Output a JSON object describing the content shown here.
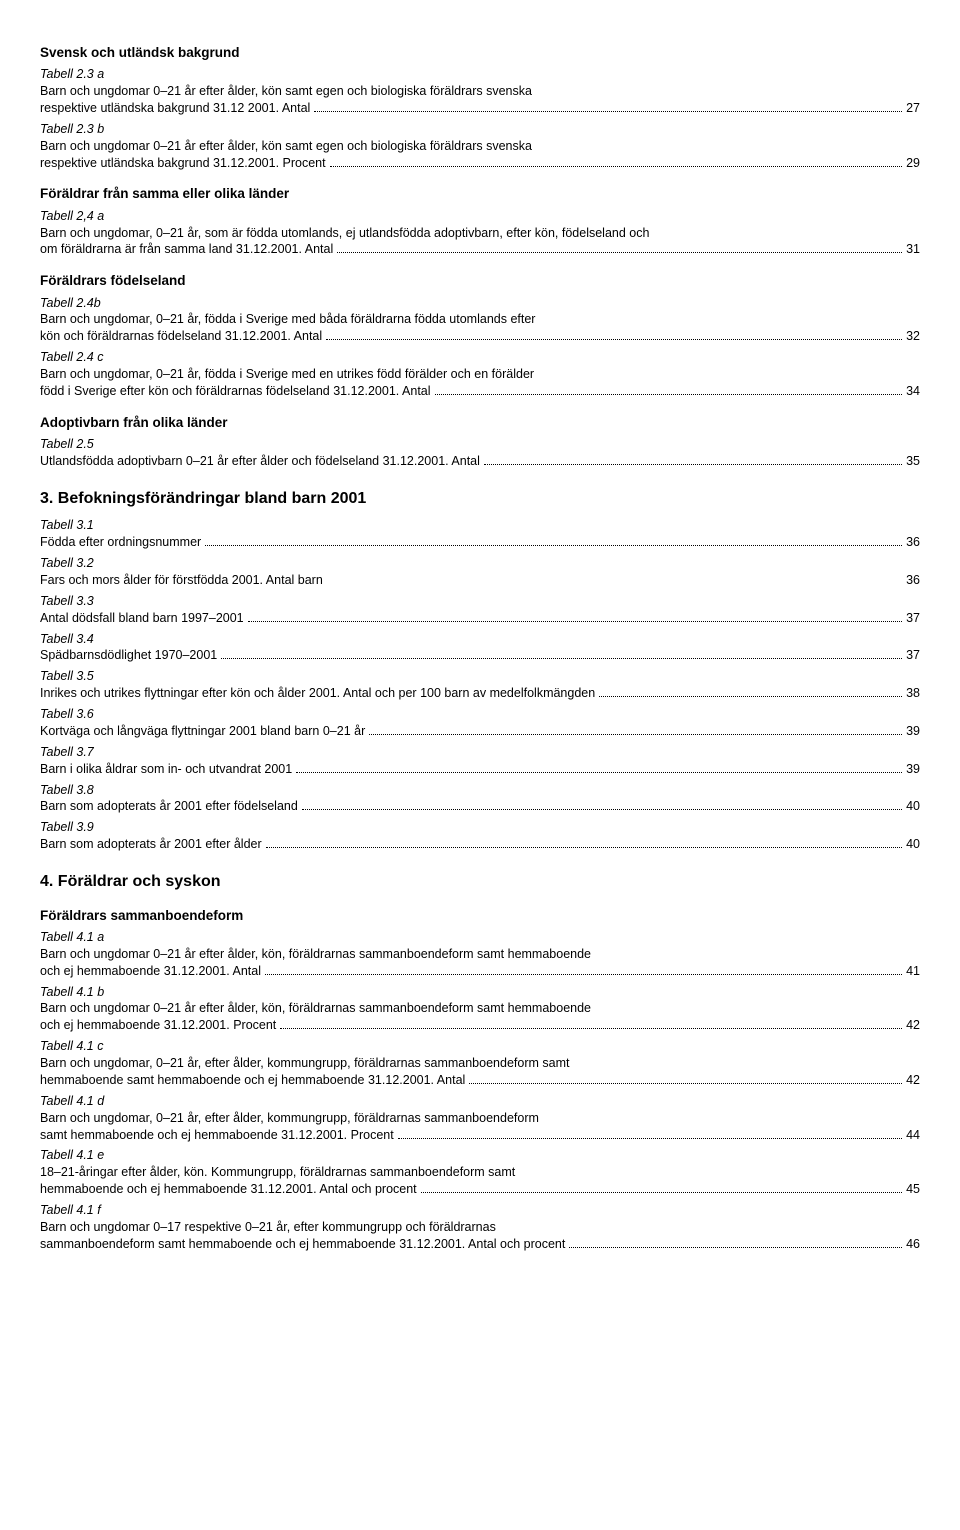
{
  "sections": [
    {
      "subtitle": "Svensk och utländsk bakgrund",
      "entries": [
        {
          "label": "Tabell 2.3 a",
          "lines": [
            "Barn och ungdomar 0–21 år efter ålder, kön samt egen och biologiska föräldrars svenska"
          ],
          "lastText": "respektive utländska bakgrund 31.12 2001. Antal",
          "page": "27"
        },
        {
          "label": "Tabell 2.3 b",
          "lines": [
            "Barn och ungdomar 0–21 år efter ålder, kön samt egen och biologiska föräldrars svenska"
          ],
          "lastText": "respektive utländska bakgrund 31.12.2001. Procent",
          "page": "29"
        }
      ]
    },
    {
      "subtitle": "Föräldrar från samma eller olika länder",
      "entries": [
        {
          "label": "Tabell 2,4 a",
          "lines": [
            "Barn och ungdomar, 0–21 år, som är födda utomlands, ej utlandsfödda adoptivbarn, efter kön, födelseland och"
          ],
          "lastText": "om föräldrarna är från samma land 31.12.2001. Antal",
          "page": "31"
        }
      ]
    },
    {
      "subtitle": "Föräldrars födelseland",
      "entries": [
        {
          "label": "Tabell 2.4b",
          "lines": [
            "Barn och ungdomar, 0–21 år, födda i Sverige med båda föräldrarna födda utomlands efter"
          ],
          "lastText": "kön och föräldrarnas födelseland 31.12.2001. Antal",
          "page": "32"
        },
        {
          "label": "Tabell 2.4 c",
          "lines": [
            "Barn och ungdomar, 0–21 år, födda i Sverige med en utrikes född förälder och en förälder"
          ],
          "lastText": "född i Sverige efter kön och föräldrarnas födelseland 31.12.2001. Antal",
          "page": "34"
        }
      ]
    },
    {
      "subtitle": "Adoptivbarn från olika länder",
      "entries": [
        {
          "label": "Tabell 2.5",
          "lines": [],
          "lastText": "Utlandsfödda adoptivbarn 0–21 år efter ålder och födelseland 31.12.2001. Antal",
          "page": "35"
        }
      ]
    }
  ],
  "heading3": "3. Befokningsförändringar bland barn 2001",
  "section3": [
    {
      "label": "Tabell 3.1",
      "lines": [],
      "lastText": "Födda efter ordningsnummer",
      "page": "36"
    },
    {
      "label": "Tabell 3.2",
      "plain": true,
      "plainText": "Fars och mors ålder för förstfödda 2001. Antal barn",
      "plainPage": "36"
    },
    {
      "label": "Tabell 3.3",
      "lines": [],
      "lastText": "Antal dödsfall bland barn 1997–2001",
      "page": "37"
    },
    {
      "label": "Tabell 3.4",
      "lines": [],
      "lastText": "Spädbarnsdödlighet 1970–2001",
      "page": "37"
    },
    {
      "label": "Tabell 3.5",
      "lines": [],
      "lastText": "Inrikes och utrikes flyttningar efter kön  och ålder 2001. Antal och per 100 barn av medelfolkmängden",
      "page": "38"
    },
    {
      "label": "Tabell 3.6",
      "lines": [],
      "lastText": "Kortväga och långväga flyttningar 2001 bland barn 0–21 år",
      "page": "39"
    },
    {
      "label": "Tabell 3.7",
      "lines": [],
      "lastText": "Barn i olika åldrar som in- och utvandrat 2001",
      "page": "39"
    },
    {
      "label": "Tabell 3.8",
      "lines": [],
      "lastText": "Barn som adopterats år 2001 efter födelseland",
      "page": "40"
    },
    {
      "label": "Tabell 3.9",
      "lines": [],
      "lastText": "Barn som adopterats år 2001 efter ålder",
      "page": "40"
    }
  ],
  "heading4": "4. Föräldrar och syskon",
  "section4sub": "Föräldrars sammanboendeform",
  "section4": [
    {
      "label": "Tabell 4.1 a",
      "lines": [
        "Barn och ungdomar 0–21 år efter ålder, kön, föräldrarnas sammanboendeform samt hemmaboende"
      ],
      "lastText": "och ej hemmaboende 31.12.2001. Antal",
      "page": "41"
    },
    {
      "label": "Tabell 4.1 b",
      "lines": [
        "Barn och ungdomar 0–21 år efter ålder, kön, föräldrarnas sammanboendeform samt hemmaboende"
      ],
      "lastText": "och ej hemmaboende 31.12.2001. Procent",
      "page": "42"
    },
    {
      "label": "Tabell 4.1 c",
      "lines": [
        "Barn och ungdomar, 0–21 år, efter ålder, kommungrupp, föräldrarnas sammanboendeform samt"
      ],
      "lastText": "hemmaboende samt hemmaboende och ej hemmaboende 31.12.2001. Antal",
      "page": "42"
    },
    {
      "label": "Tabell 4.1 d",
      "lines": [
        "Barn och ungdomar, 0–21 år, efter ålder, kommungrupp, föräldrarnas sammanboendeform"
      ],
      "lastText": "samt hemmaboende och ej hemmaboende 31.12.2001. Procent",
      "page": "44"
    },
    {
      "label": "Tabell 4.1 e",
      "lines": [
        "18–21-åringar efter ålder, kön. Kommungrupp, föräldrarnas sammanboendeform samt"
      ],
      "lastText": "hemmaboende och ej hemmaboende 31.12.2001. Antal och procent",
      "page": "45"
    },
    {
      "label": "Tabell 4.1 f",
      "lines": [
        "Barn och ungdomar 0–17 respektive 0–21 år, efter kommungrupp och föräldrarnas"
      ],
      "lastText": "sammanboendeform samt hemmaboende och ej hemmaboende 31.12.2001. Antal och procent",
      "page": "46"
    }
  ]
}
